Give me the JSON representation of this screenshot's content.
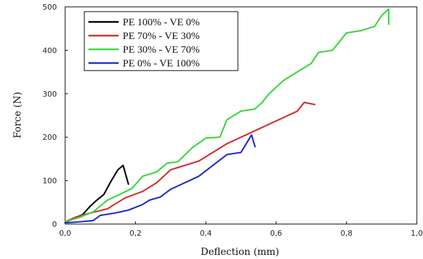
{
  "chart_data": {
    "type": "line",
    "title": "",
    "xlabel": "Deflection (mm)",
    "ylabel": "Force (N)",
    "xlim": [
      0,
      1.0
    ],
    "ylim": [
      0,
      500
    ],
    "xticks": [
      0,
      0.2,
      0.4,
      0.6,
      0.8,
      1.0
    ],
    "xtick_labels": [
      "0,0",
      "0,2",
      "0,4",
      "0,6",
      "0,8",
      "1,0"
    ],
    "yticks": [
      0,
      100,
      200,
      300,
      400,
      500
    ],
    "ytick_labels": [
      "0",
      "100",
      "200",
      "300",
      "400",
      "500"
    ],
    "grid": false,
    "legend_position": "top-left",
    "series": [
      {
        "name": "PE 100% - VE 0%",
        "color": "#000000",
        "x": [
          0,
          0.02,
          0.05,
          0.07,
          0.09,
          0.11,
          0.13,
          0.15,
          0.165,
          0.18
        ],
        "y": [
          3,
          12,
          22,
          40,
          55,
          68,
          98,
          125,
          135,
          92
        ]
      },
      {
        "name": "PE 70% - VE 30%",
        "color": "#d32f2f",
        "x": [
          0,
          0.03,
          0.07,
          0.12,
          0.17,
          0.22,
          0.26,
          0.3,
          0.34,
          0.38,
          0.42,
          0.46,
          0.5,
          0.54,
          0.58,
          0.62,
          0.66,
          0.68,
          0.71
        ],
        "y": [
          5,
          16,
          25,
          35,
          60,
          75,
          95,
          125,
          135,
          145,
          165,
          185,
          200,
          215,
          230,
          245,
          260,
          280,
          275
        ]
      },
      {
        "name": "PE 30% - VE 70%",
        "color": "#3cd63c",
        "x": [
          0,
          0.04,
          0.08,
          0.12,
          0.16,
          0.19,
          0.22,
          0.26,
          0.29,
          0.32,
          0.36,
          0.4,
          0.44,
          0.46,
          0.5,
          0.54,
          0.56,
          0.58,
          0.62,
          0.66,
          0.7,
          0.72,
          0.76,
          0.8,
          0.84,
          0.88,
          0.9,
          0.92,
          0.92
        ],
        "y": [
          5,
          15,
          28,
          55,
          70,
          82,
          110,
          120,
          140,
          143,
          175,
          198,
          200,
          240,
          260,
          265,
          280,
          300,
          330,
          350,
          370,
          395,
          400,
          440,
          445,
          455,
          480,
          495,
          460
        ]
      },
      {
        "name": "PE 0% - VE 100%",
        "color": "#1f2fc8",
        "x": [
          0,
          0.04,
          0.08,
          0.1,
          0.14,
          0.18,
          0.22,
          0.24,
          0.27,
          0.3,
          0.34,
          0.38,
          0.42,
          0.46,
          0.5,
          0.53,
          0.54
        ],
        "y": [
          3,
          5,
          8,
          20,
          25,
          32,
          45,
          55,
          62,
          80,
          95,
          110,
          135,
          160,
          165,
          205,
          178
        ]
      }
    ]
  }
}
